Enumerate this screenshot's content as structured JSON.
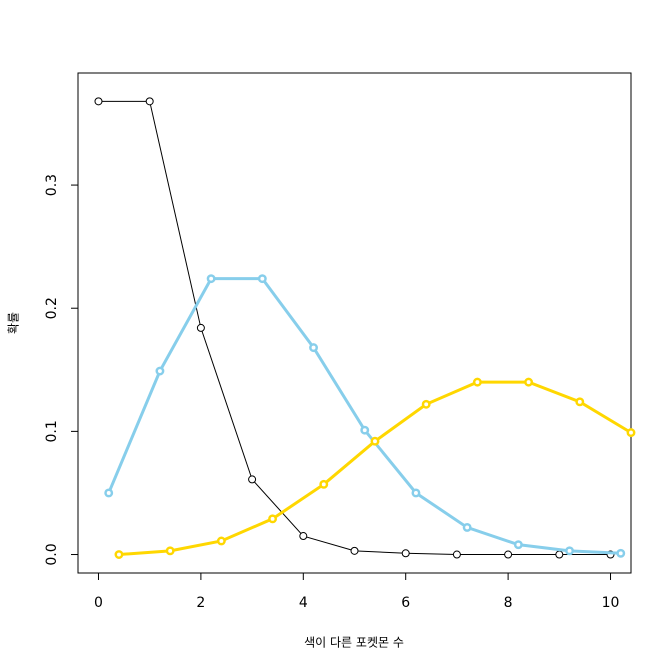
{
  "chart_data": {
    "type": "line",
    "x_label": "색이 다른 포켓몬 수",
    "y_label": "확률",
    "xlim": [
      -0.4,
      10.4
    ],
    "xticks": [
      0,
      2,
      4,
      6,
      8,
      10
    ],
    "ylim": [
      -0.015,
      0.391
    ],
    "yticks": [
      {
        "value": 0,
        "label": "0.0"
      },
      0.1,
      0.2,
      0.3
    ],
    "series": [
      {
        "color": "#000000",
        "width": 1,
        "x": [
          0,
          1,
          2,
          3,
          4,
          5,
          6,
          7,
          8,
          9,
          10
        ],
        "values": [
          0.368,
          0.368,
          0.184,
          0.061,
          0.015,
          0.003,
          0.001,
          0.0,
          0.0,
          0.0,
          0.0
        ]
      },
      {
        "color": "#87ceeb",
        "width": 3,
        "x": [
          0.2,
          1.2,
          2.2,
          3.2,
          4.2,
          5.2,
          6.2,
          7.2,
          8.2,
          9.2,
          10.2
        ],
        "values": [
          0.05,
          0.149,
          0.224,
          0.224,
          0.168,
          0.101,
          0.05,
          0.022,
          0.008,
          0.003,
          0.001
        ]
      },
      {
        "color": "#ffd700",
        "width": 3,
        "x": [
          0.4,
          1.4,
          2.4,
          3.4,
          4.4,
          5.4,
          6.4,
          7.4,
          8.4,
          9.4,
          10.4
        ],
        "values": [
          0.0,
          0.003,
          0.011,
          0.029,
          0.057,
          0.092,
          0.122,
          0.14,
          0.14,
          0.124,
          0.099
        ]
      }
    ]
  }
}
